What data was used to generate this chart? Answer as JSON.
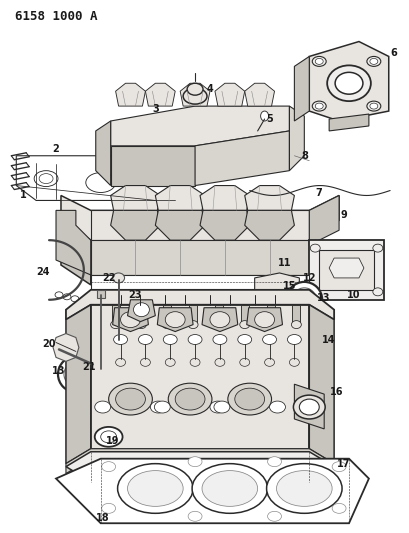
{
  "title": "6158 1000 A",
  "bg": "#ffffff",
  "lc": "#2a2a2a",
  "tc": "#1a1a1a",
  "fw": 4.1,
  "fh": 5.33,
  "dpi": 100,
  "gray1": "#d8d4ce",
  "gray2": "#c8c4be",
  "gray3": "#e8e4e0",
  "gray4": "#f0eeec"
}
